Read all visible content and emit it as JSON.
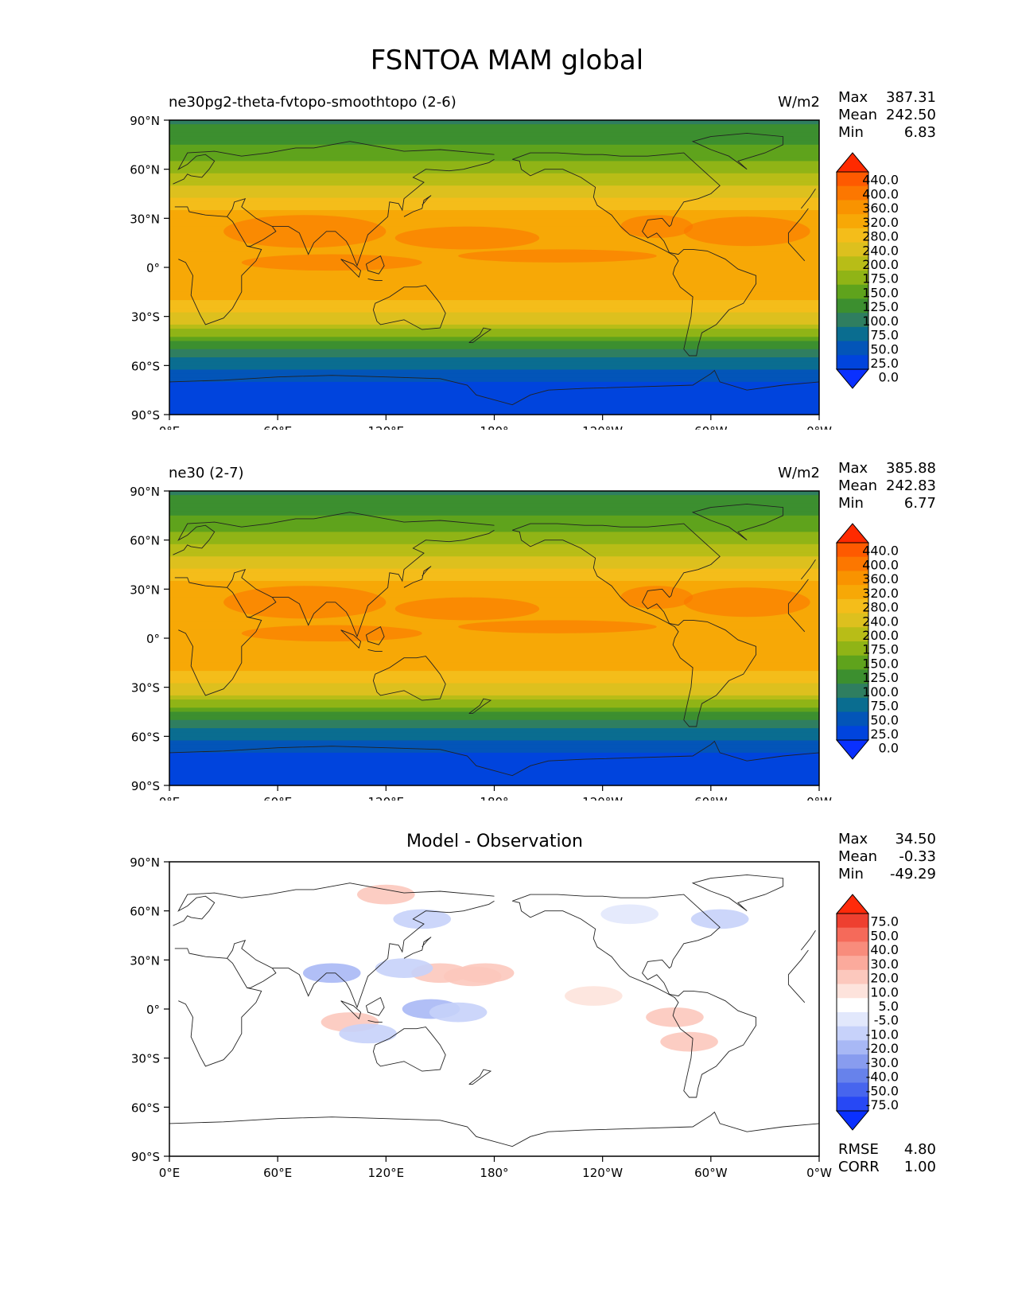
{
  "title": "FSNTOA MAM global",
  "axes": {
    "lat_ticks": [
      "90°N",
      "60°N",
      "30°N",
      "0°",
      "30°S",
      "60°S",
      "90°S"
    ],
    "lon_ticks": [
      "0°E",
      "60°E",
      "120°E",
      "180°",
      "120°W",
      "60°W",
      "0°W"
    ]
  },
  "colorbars": {
    "absolute": {
      "labels": [
        "440.0",
        "400.0",
        "360.0",
        "320.0",
        "280.0",
        "240.0",
        "200.0",
        "175.0",
        "150.0",
        "125.0",
        "100.0",
        "75.0",
        "50.0",
        "25.0",
        "0.0"
      ],
      "colors": [
        "#ff2a00",
        "#fe5a00",
        "#fc7700",
        "#f99300",
        "#f7a806",
        "#f4bd1a",
        "#ddc01e",
        "#b8bd17",
        "#90b416",
        "#5fa31c",
        "#3c8f2f",
        "#2f7e60",
        "#0a6d90",
        "#0355b8",
        "#0044dd",
        "#0a30ff"
      ]
    },
    "diff": {
      "labels": [
        "75.0",
        "50.0",
        "40.0",
        "30.0",
        "20.0",
        "10.0",
        "5.0",
        "-5.0",
        "-10.0",
        "-20.0",
        "-30.0",
        "-40.0",
        "-50.0",
        "-75.0"
      ],
      "colors": [
        "#ff2a0a",
        "#ee4030",
        "#f56a5a",
        "#f88c7c",
        "#fbaa9c",
        "#fcc8bd",
        "#fde3dc",
        "#ffffff",
        "#e2e8fc",
        "#c7d2fa",
        "#a8b8f5",
        "#889cef",
        "#6782eb",
        "#4765ee",
        "#2748f5",
        "#0a30ff"
      ]
    }
  },
  "panels": [
    {
      "id": "test",
      "left_title": "ne30pg2-theta-fvtopo-smoothtopo (2-6)",
      "units": "W/m2",
      "stats": [
        {
          "label": "Max",
          "value": "387.31"
        },
        {
          "label": "Mean",
          "value": "242.50"
        },
        {
          "label": "Min",
          "value": "6.83"
        }
      ]
    },
    {
      "id": "reference",
      "left_title": "ne30 (2-7)",
      "units": "W/m2",
      "stats": [
        {
          "label": "Max",
          "value": "385.88"
        },
        {
          "label": "Mean",
          "value": "242.83"
        },
        {
          "label": "Min",
          "value": "6.77"
        }
      ]
    },
    {
      "id": "difference",
      "center_title": "Model - Observation",
      "stats": [
        {
          "label": "Max",
          "value": "34.50"
        },
        {
          "label": "Mean",
          "value": "-0.33"
        },
        {
          "label": "Min",
          "value": "-49.29"
        }
      ],
      "metrics": [
        {
          "label": "RMSE",
          "value": "4.80"
        },
        {
          "label": "CORR",
          "value": "1.00"
        }
      ]
    }
  ],
  "chart_data": [
    {
      "type": "heatmap",
      "title": "ne30pg2-theta-fvtopo-smoothtopo (2-6)",
      "units": "W/m2",
      "x_range": [
        0,
        360
      ],
      "y_range": [
        -90,
        90
      ],
      "zonal_profile": {
        "lat": [
          90,
          80,
          70,
          60,
          50,
          40,
          30,
          20,
          10,
          0,
          -10,
          -20,
          -30,
          -40,
          -50,
          -60,
          -70,
          -80,
          -90
        ],
        "value": [
          95,
          110,
          140,
          165,
          200,
          255,
          300,
          320,
          310,
          290,
          300,
          280,
          230,
          160,
          95,
          55,
          25,
          8,
          7
        ]
      },
      "max": 387.31,
      "mean": 242.5,
      "min": 6.83
    },
    {
      "type": "heatmap",
      "title": "ne30 (2-7)",
      "units": "W/m2",
      "x_range": [
        0,
        360
      ],
      "y_range": [
        -90,
        90
      ],
      "zonal_profile": {
        "lat": [
          90,
          80,
          70,
          60,
          50,
          40,
          30,
          20,
          10,
          0,
          -10,
          -20,
          -30,
          -40,
          -50,
          -60,
          -70,
          -80,
          -90
        ],
        "value": [
          95,
          110,
          140,
          165,
          200,
          255,
          300,
          320,
          310,
          290,
          300,
          280,
          230,
          160,
          95,
          55,
          25,
          8,
          7
        ]
      },
      "max": 385.88,
      "mean": 242.83,
      "min": 6.77
    },
    {
      "type": "heatmap",
      "title": "Model - Observation",
      "x_range": [
        0,
        360
      ],
      "y_range": [
        -90,
        90
      ],
      "anomalies": [
        {
          "lon": 150,
          "lat": 22,
          "value": 15
        },
        {
          "lon": 168,
          "lat": 20,
          "value": 18
        },
        {
          "lon": 175,
          "lat": 22,
          "value": 15
        },
        {
          "lon": 90,
          "lat": 22,
          "value": -30
        },
        {
          "lon": 130,
          "lat": 25,
          "value": -18
        },
        {
          "lon": 145,
          "lat": 0,
          "value": -22
        },
        {
          "lon": 160,
          "lat": -2,
          "value": -18
        },
        {
          "lon": 100,
          "lat": -8,
          "value": 15
        },
        {
          "lon": 280,
          "lat": -5,
          "value": 18
        },
        {
          "lon": 288,
          "lat": -20,
          "value": 12
        },
        {
          "lon": 110,
          "lat": -15,
          "value": -15
        },
        {
          "lon": 140,
          "lat": 55,
          "value": -12
        },
        {
          "lon": 305,
          "lat": 55,
          "value": -15
        },
        {
          "lon": 120,
          "lat": 70,
          "value": 10
        },
        {
          "lon": 255,
          "lat": 58,
          "value": -10
        },
        {
          "lon": 235,
          "lat": 8,
          "value": 8
        }
      ],
      "max": 34.5,
      "mean": -0.33,
      "min": -49.29,
      "rmse": 4.8,
      "corr": 1.0
    }
  ]
}
